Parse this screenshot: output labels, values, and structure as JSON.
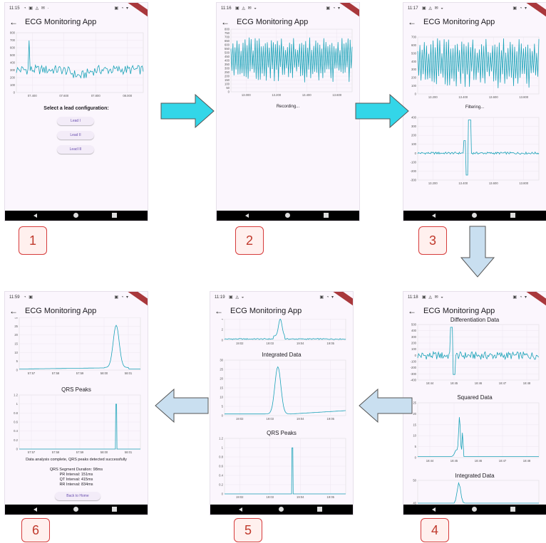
{
  "app_title": "ECG Monitoring App",
  "screens": {
    "s1": {
      "time": "11:15",
      "prompt": "Select a lead configuration:",
      "buttons": [
        "Lead I",
        "Lead II",
        "Lead III"
      ],
      "badge": "1",
      "chart_yticks": [
        "800",
        "700",
        "600",
        "500",
        "400",
        "300",
        "200",
        "100",
        "0"
      ],
      "chart_xticks": [
        "07.400",
        "07.600",
        "07.800",
        "08.000"
      ]
    },
    "s2": {
      "time": "11:16",
      "status": "Recording...",
      "badge": "2",
      "chart_yticks": [
        "800",
        "750",
        "700",
        "650",
        "600",
        "550",
        "500",
        "450",
        "400",
        "350",
        "300",
        "250",
        "200",
        "150",
        "100",
        "50",
        "0"
      ],
      "chart_xticks": [
        "13.000",
        "13.200",
        "13.400",
        "13.600"
      ]
    },
    "s3": {
      "time": "11:17",
      "status": "Filtering...",
      "badge": "3",
      "chart1_yticks": [
        "700",
        "600",
        "500",
        "400",
        "300",
        "200",
        "100",
        "0"
      ],
      "chart1_xticks": [
        "13.200",
        "13.400",
        "13.600",
        "13.800"
      ],
      "chart2_yticks": [
        "400",
        "300",
        "200",
        "100",
        "0",
        "-100",
        "-200",
        "-300"
      ],
      "chart2_xticks": [
        "13.200",
        "13.400",
        "13.600",
        "13.800"
      ]
    },
    "s4": {
      "time": "11:18",
      "badge": "4",
      "diff_title": "Differentiation Data",
      "diff_yticks": [
        "500",
        "400",
        "300",
        "200",
        "100",
        "0",
        "-100",
        "-200",
        "-300",
        "-400"
      ],
      "diff_xticks": [
        "18:44",
        "18:45",
        "18:46",
        "18:47",
        "18:48"
      ],
      "sq_title": "Squared Data",
      "sq_yticks": [
        "25",
        "20",
        "15",
        "10",
        "5",
        "0"
      ],
      "sq_xticks": [
        "18:44",
        "18:45",
        "18:46",
        "18:47",
        "18:48"
      ],
      "int_title": "Integrated Data",
      "int_yticks": [
        "50",
        "40"
      ]
    },
    "s5": {
      "time": "11:19",
      "badge": "5",
      "top_yticks": [
        "4",
        "2",
        "0"
      ],
      "top_xticks": [
        "19:02",
        "19:03",
        "19:04",
        "19:05"
      ],
      "int_title": "Integrated Data",
      "int_yticks": [
        "30",
        "25",
        "20",
        "15",
        "10",
        "5",
        "0"
      ],
      "int_xticks": [
        "19:02",
        "19:03",
        "19:04",
        "19:05"
      ],
      "qrs_title": "QRS Peaks",
      "qrs_yticks": [
        "1.2",
        "1",
        "0.8",
        "0.6",
        "0.4",
        "0.2",
        "0"
      ],
      "qrs_xticks": [
        "19:02",
        "19:03",
        "19:04",
        "19:05"
      ]
    },
    "s6": {
      "time": "11:59",
      "badge": "6",
      "top_yticks": [
        "30",
        "25",
        "20",
        "15",
        "10",
        "5",
        "0"
      ],
      "top_xticks": [
        "57:57",
        "57:58",
        "57:59",
        "58:00",
        "58:01"
      ],
      "qrs_title": "QRS Peaks",
      "qrs_yticks": [
        "1.2",
        "1",
        "0.8",
        "0.6",
        "0.4",
        "0.2",
        "0"
      ],
      "qrs_xticks": [
        "57:57",
        "57:58",
        "57:59",
        "58:00",
        "58:01"
      ],
      "message": "Data analysis complete, QRS peaks detected successfully",
      "results": [
        "QRS Segment Duration: 98ms",
        "PR Interval: 151ms",
        "QT Interval: 415ms",
        "RR Interval: 834ms"
      ],
      "home_button": "Back to Home"
    }
  },
  "colors": {
    "trace": "#1aa3b8",
    "arrow_cyan": "#33d6e8",
    "arrow_blue": "#c9dff0",
    "badge": "#d63b3b"
  }
}
